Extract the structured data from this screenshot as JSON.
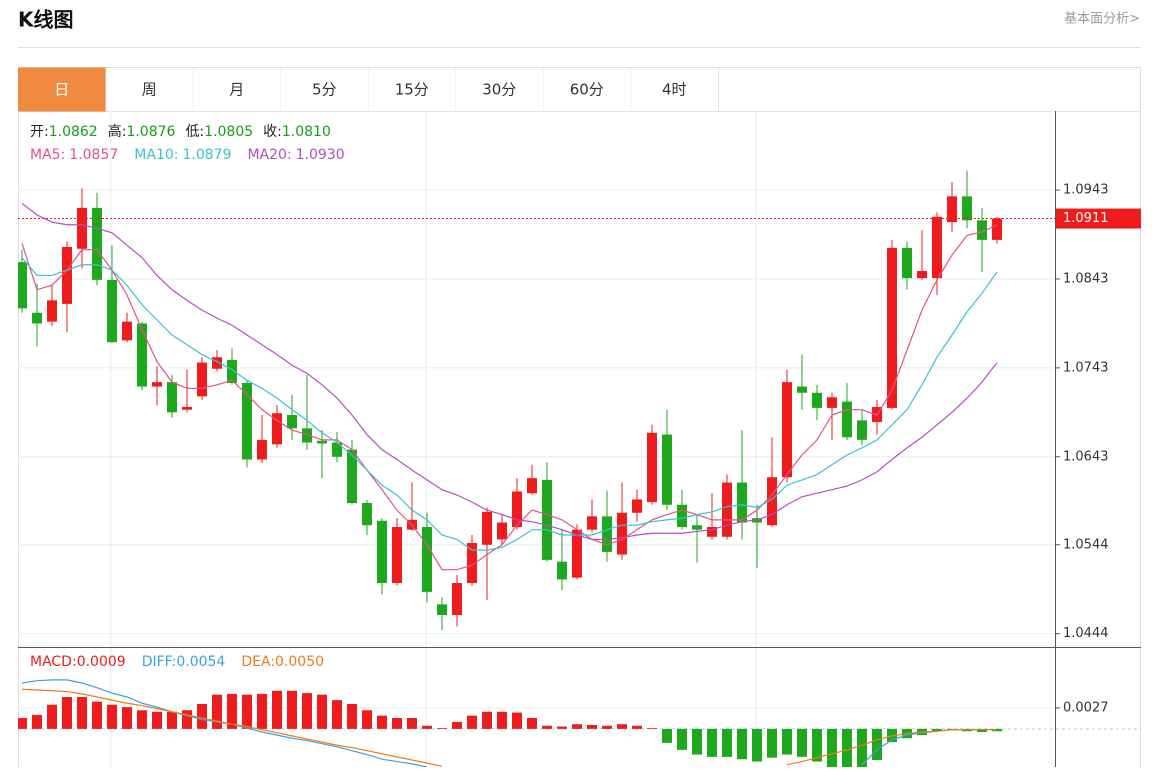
{
  "header": {
    "title": "K线图",
    "link": "基本面分析>"
  },
  "tabs": [
    "日",
    "周",
    "月",
    "5分",
    "15分",
    "30分",
    "60分",
    "4时"
  ],
  "active_tab": 0,
  "chart_data": [
    {
      "type": "candlestick",
      "info": [
        {
          "label": "开:",
          "value": "1.0862"
        },
        {
          "label": "高:",
          "value": "1.0876"
        },
        {
          "label": "低:",
          "value": "1.0805"
        },
        {
          "label": "收:",
          "value": "1.0810"
        }
      ],
      "up_color": "#ee1c1c",
      "down_color": "#1ea81e",
      "open": [
        1.0862,
        1.0805,
        1.0795,
        1.0815,
        1.0877,
        1.0923,
        1.0842,
        1.0774,
        1.0793,
        1.0722,
        1.0727,
        1.0696,
        1.0711,
        1.0742,
        1.0752,
        1.0726,
        1.064,
        1.0657,
        1.069,
        1.0675,
        1.0661,
        1.0659,
        1.0651,
        1.0591,
        1.0571,
        1.0501,
        1.0561,
        1.0564,
        1.0477,
        1.0465,
        1.0501,
        1.0544,
        1.055,
        1.0564,
        1.0602,
        1.0617,
        1.0525,
        1.0507,
        1.0561,
        1.0576,
        1.0533,
        1.058,
        1.0592,
        1.0668,
        1.0589,
        1.0566,
        1.0553,
        1.0553,
        1.0614,
        1.0574,
        1.0566,
        1.062,
        1.0722,
        1.0715,
        1.0698,
        1.0705,
        1.0684,
        1.0682,
        1.0698,
        1.0878,
        1.0844,
        1.0844,
        1.0907,
        1.0936,
        1.0909,
        1.0887
      ],
      "high": [
        1.0876,
        1.0838,
        1.0836,
        1.0885,
        1.0945,
        1.094,
        1.0881,
        1.0805,
        1.0795,
        1.0745,
        1.0735,
        1.0741,
        1.0755,
        1.0763,
        1.0765,
        1.0729,
        1.069,
        1.0701,
        1.0713,
        1.0735,
        1.0673,
        1.0671,
        1.0662,
        1.0594,
        1.0574,
        1.0574,
        1.0614,
        1.058,
        1.0485,
        1.051,
        1.0555,
        1.0586,
        1.0578,
        1.0619,
        1.0634,
        1.0637,
        1.0561,
        1.0567,
        1.0595,
        1.0605,
        1.0614,
        1.0606,
        1.0679,
        1.0696,
        1.0606,
        1.0578,
        1.0602,
        1.0623,
        1.0673,
        1.0589,
        1.0665,
        1.0741,
        1.0758,
        1.0724,
        1.0715,
        1.0726,
        1.0696,
        1.0707,
        1.0887,
        1.0885,
        1.0898,
        1.0918,
        1.0952,
        1.0965,
        1.0923,
        1.0913
      ],
      "low": [
        1.0805,
        1.0767,
        1.079,
        1.0783,
        1.0855,
        1.0836,
        1.0771,
        1.0772,
        1.0718,
        1.0701,
        1.0687,
        1.0693,
        1.0707,
        1.0739,
        1.0724,
        1.0631,
        1.0636,
        1.0653,
        1.0662,
        1.0651,
        1.0619,
        1.0637,
        1.0589,
        1.0555,
        1.0488,
        1.0498,
        1.056,
        1.0479,
        1.0448,
        1.0452,
        1.0498,
        1.0482,
        1.0544,
        1.0561,
        1.06,
        1.0525,
        1.0493,
        1.0505,
        1.0558,
        1.0525,
        1.0527,
        1.057,
        1.0589,
        1.0583,
        1.0561,
        1.0524,
        1.055,
        1.055,
        1.055,
        1.0518,
        1.0564,
        1.0614,
        1.0696,
        1.0684,
        1.0662,
        1.0662,
        1.0656,
        1.0668,
        1.0696,
        1.0831,
        1.0842,
        1.0825,
        1.0896,
        1.09,
        1.0851,
        1.0883
      ],
      "close": [
        1.081,
        1.0793,
        1.0819,
        1.0879,
        1.0923,
        1.0842,
        1.0772,
        1.0795,
        1.0722,
        1.0727,
        1.0693,
        1.0699,
        1.0749,
        1.0755,
        1.0726,
        1.064,
        1.0662,
        1.0692,
        1.0675,
        1.0659,
        1.0658,
        1.0643,
        1.0591,
        1.0566,
        1.0501,
        1.0564,
        1.0572,
        1.0491,
        1.0465,
        1.0501,
        1.0546,
        1.0581,
        1.0569,
        1.0604,
        1.0619,
        1.0527,
        1.0505,
        1.0561,
        1.0576,
        1.0536,
        1.058,
        1.0595,
        1.067,
        1.0589,
        1.0564,
        1.0561,
        1.0564,
        1.0614,
        1.0569,
        1.0569,
        1.062,
        1.0727,
        1.0715,
        1.0698,
        1.071,
        1.0665,
        1.0662,
        1.0699,
        1.0878,
        1.0844,
        1.0852,
        1.0913,
        1.0936,
        1.0909,
        1.0887,
        1.0911
      ],
      "series": [
        {
          "name": "MA5:",
          "current": "1.0857",
          "color": "#e8508a",
          "values": [
            1.0883,
            1.0831,
            1.0836,
            1.0853,
            1.0876,
            1.0876,
            1.0853,
            1.0825,
            1.0786,
            1.075,
            1.0727,
            1.072,
            1.072,
            1.0724,
            1.0729,
            1.0713,
            1.0696,
            1.0684,
            1.0673,
            1.0668,
            1.0662,
            1.0662,
            1.0651,
            1.0628,
            1.0606,
            1.0583,
            1.0566,
            1.0544,
            1.0516,
            1.0516,
            1.0521,
            1.0533,
            1.0544,
            1.0566,
            1.0583,
            1.0578,
            1.0572,
            1.0561,
            1.055,
            1.0544,
            1.055,
            1.0561,
            1.0572,
            1.0578,
            1.0583,
            1.0578,
            1.0572,
            1.0572,
            1.0572,
            1.0583,
            1.06,
            1.0623,
            1.0645,
            1.0662,
            1.069,
            1.0696,
            1.0696,
            1.069,
            1.0718,
            1.0763,
            1.0808,
            1.0842,
            1.087,
            1.0892,
            1.0896,
            1.0904
          ]
        },
        {
          "name": "MA10:",
          "current": "1.0879",
          "color": "#39c3d1",
          "values": [
            1.0867,
            1.0847,
            1.0847,
            1.0853,
            1.0859,
            1.0859,
            1.0853,
            1.0836,
            1.0814,
            1.0797,
            1.078,
            1.0769,
            1.0758,
            1.075,
            1.0741,
            1.0729,
            1.072,
            1.0709,
            1.0696,
            1.0684,
            1.067,
            1.0659,
            1.0645,
            1.0628,
            1.0611,
            1.06,
            1.0583,
            1.0572,
            1.0555,
            1.055,
            1.0538,
            1.0538,
            1.0541,
            1.055,
            1.0561,
            1.0561,
            1.0555,
            1.0555,
            1.0555,
            1.0561,
            1.0566,
            1.0566,
            1.057,
            1.0572,
            1.0574,
            1.0578,
            1.0581,
            1.0587,
            1.0589,
            1.0586,
            1.0595,
            1.0611,
            1.0617,
            1.0623,
            1.0634,
            1.0645,
            1.0653,
            1.0662,
            1.0679,
            1.0696,
            1.0724,
            1.0755,
            1.078,
            1.0806,
            1.0827,
            1.0851
          ]
        },
        {
          "name": "MA20:",
          "current": "1.0930",
          "color": "#b44ec2",
          "values": [
            1.0928,
            1.0915,
            1.0907,
            1.0904,
            1.0904,
            1.09,
            1.0895,
            1.0881,
            1.0867,
            1.0847,
            1.0831,
            1.0819,
            1.0808,
            1.0799,
            1.0791,
            1.078,
            1.0769,
            1.0758,
            1.0746,
            1.0737,
            1.0724,
            1.0709,
            1.069,
            1.0668,
            1.0651,
            1.064,
            1.0628,
            1.0617,
            1.0606,
            1.06,
            1.0592,
            1.0583,
            1.0578,
            1.0572,
            1.057,
            1.0566,
            1.0561,
            1.0555,
            1.055,
            1.055,
            1.0552,
            1.0555,
            1.0557,
            1.0557,
            1.0557,
            1.0559,
            1.0561,
            1.0566,
            1.057,
            1.0572,
            1.0578,
            1.0589,
            1.0598,
            1.0602,
            1.0606,
            1.061,
            1.0617,
            1.0626,
            1.064,
            1.0653,
            1.0665,
            1.0679,
            1.0693,
            1.0709,
            1.0727,
            1.0749
          ]
        }
      ],
      "last_price": 1.0911,
      "ylim": [
        1.0429,
        1.1032
      ],
      "yticks": [
        1.0943,
        1.0843,
        1.0743,
        1.0643,
        1.0544,
        1.0444
      ],
      "grid": true
    },
    {
      "type": "macd",
      "histogram": {
        "name": "MACD:",
        "current": "0.0009",
        "color": "#ee1c1c",
        "negative_color": "#1ea81e",
        "values": [
          0.0014,
          0.0018,
          0.0031,
          0.0041,
          0.0041,
          0.0035,
          0.0031,
          0.0028,
          0.0024,
          0.0022,
          0.0022,
          0.0024,
          0.0032,
          0.0044,
          0.0045,
          0.0044,
          0.0045,
          0.0049,
          0.0049,
          0.0046,
          0.0044,
          0.0037,
          0.0032,
          0.0024,
          0.0017,
          0.0014,
          0.0014,
          0.0004,
          0.0001,
          0.0009,
          0.0017,
          0.0022,
          0.0022,
          0.0021,
          0.0014,
          0.0004,
          0.0003,
          0.0006,
          0.0005,
          0.0004,
          0.0006,
          0.0004,
          0.0001,
          -0.0018,
          -0.0027,
          -0.0033,
          -0.0036,
          -0.0036,
          -0.0039,
          -0.0042,
          -0.0037,
          -0.0033,
          -0.0036,
          -0.0042,
          -0.005,
          -0.0055,
          -0.0052,
          -0.004,
          -0.0017,
          -0.0012,
          -0.0008,
          -0.0003,
          -0.0001,
          -0.0003,
          -0.0004,
          -0.0003
        ]
      },
      "series": [
        {
          "name": "DIFF:",
          "current": "0.0054",
          "color": "#3ea0e0",
          "values": [
            0.0059,
            0.0062,
            0.0063,
            0.0063,
            0.0059,
            0.0053,
            0.0046,
            0.0041,
            0.0033,
            0.0028,
            0.0022,
            0.0017,
            0.0012,
            0.0009,
            0.0006,
            0.0001,
            -0.0004,
            -0.0008,
            -0.0012,
            -0.0015,
            -0.0019,
            -0.0023,
            -0.0028,
            -0.0033,
            -0.0039,
            -0.0042,
            -0.0045,
            -0.0049,
            null,
            null,
            null,
            null,
            null,
            null,
            null,
            null,
            null,
            null,
            null,
            null,
            null,
            null,
            null,
            null,
            null,
            null,
            null,
            null,
            null,
            null,
            null,
            null,
            null,
            null,
            null,
            null,
            -0.0046,
            -0.0027,
            -0.0014,
            -0.0008,
            -0.0005,
            -0.0003,
            -0.0001,
            -0.0001,
            -0.0001,
            -0.0001
          ]
        },
        {
          "name": "DEA:",
          "current": "0.0050",
          "color": "#f07a1a",
          "values": [
            0.0051,
            0.005,
            0.0049,
            0.0048,
            0.0045,
            0.0041,
            0.0037,
            0.0033,
            0.003,
            0.0026,
            0.0022,
            0.0018,
            0.0014,
            0.001,
            0.0006,
            0.0003,
            -0.0001,
            -0.0005,
            -0.0009,
            -0.0013,
            -0.0017,
            -0.0021,
            -0.0024,
            -0.0028,
            -0.0032,
            -0.0036,
            -0.004,
            -0.0044,
            -0.0048,
            null,
            null,
            null,
            null,
            null,
            null,
            null,
            null,
            null,
            null,
            null,
            null,
            null,
            null,
            null,
            null,
            null,
            null,
            null,
            null,
            null,
            null,
            -0.0046,
            -0.0042,
            -0.0037,
            -0.0032,
            -0.0027,
            -0.0021,
            -0.0014,
            -0.0009,
            -0.0006,
            -0.0004,
            -0.0003,
            -0.0001,
            -0.0001,
            -0.0001,
            -0.0001
          ]
        }
      ],
      "ylim": [
        -0.0049,
        0.0104
      ],
      "yticks": [
        0.0027
      ],
      "grid": true
    }
  ]
}
